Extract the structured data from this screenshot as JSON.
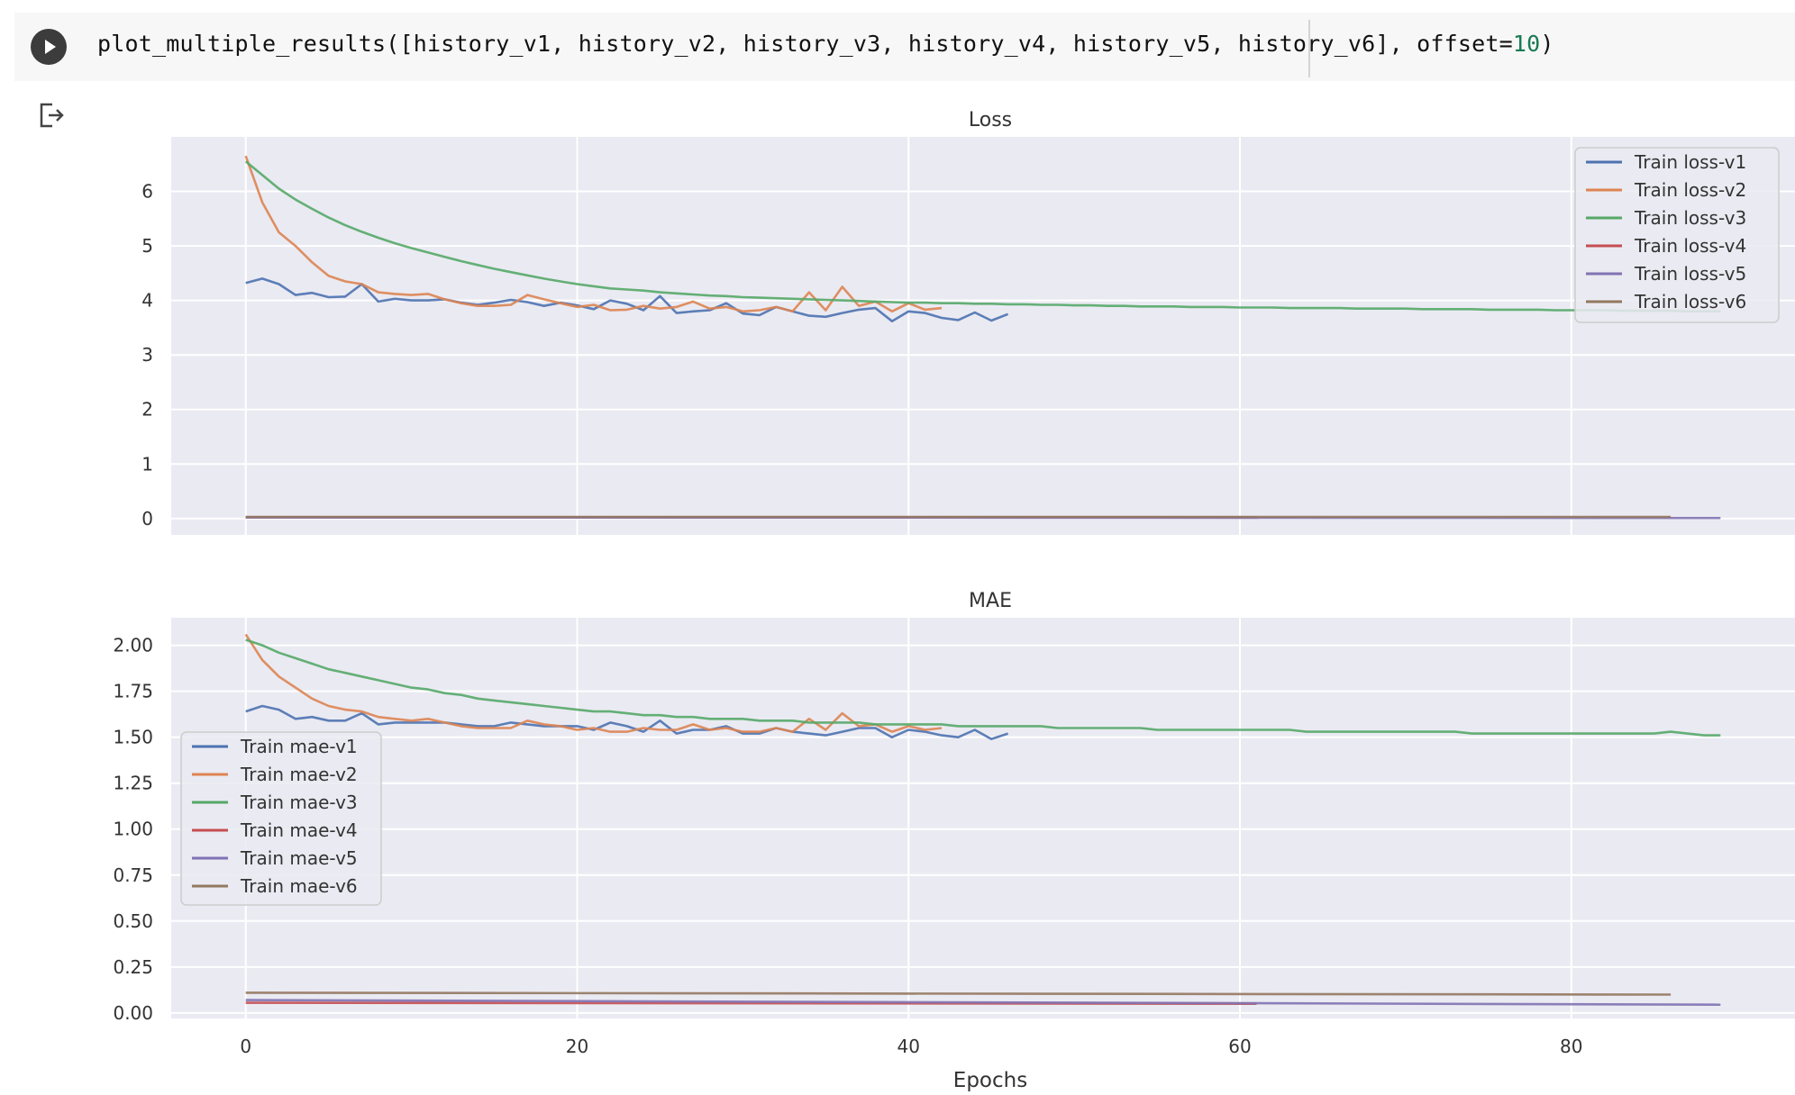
{
  "cell": {
    "code_prefix": "plot_multiple_results([history_v1, history_v2, history_v3, history_v4, history_v5, history_v6], offset=",
    "code_number": "10",
    "code_suffix": ")",
    "run_icon": "play-icon",
    "output_icon": "output-exit-icon"
  },
  "chart_data": [
    {
      "type": "line",
      "title": "Loss",
      "xlabel": "",
      "ylabel": "",
      "xlim": [
        -4.5,
        93.5
      ],
      "ylim": [
        -0.3,
        7.0
      ],
      "yticks": [
        0,
        1,
        2,
        3,
        4,
        5,
        6
      ],
      "xticks": [
        0,
        20,
        40,
        60,
        80
      ],
      "grid": true,
      "legend": "top-right",
      "series": [
        {
          "name": "Train loss-v1",
          "color": "#4c72b0",
          "x": [
            0,
            1,
            2,
            3,
            4,
            5,
            6,
            7,
            8,
            9,
            10,
            11,
            12,
            13,
            14,
            15,
            16,
            17,
            18,
            19,
            20,
            21,
            22,
            23,
            24,
            25,
            26,
            27,
            28,
            29,
            30,
            31,
            32,
            33,
            34,
            35,
            36,
            37,
            38,
            39,
            40,
            41,
            42,
            43,
            44,
            45,
            46
          ],
          "y": [
            4.32,
            4.4,
            4.3,
            4.1,
            4.14,
            4.06,
            4.07,
            4.3,
            3.98,
            4.03,
            4.0,
            4.0,
            4.02,
            3.96,
            3.92,
            3.96,
            4.01,
            3.97,
            3.9,
            3.96,
            3.91,
            3.84,
            4.0,
            3.94,
            3.82,
            4.08,
            3.77,
            3.8,
            3.82,
            3.95,
            3.76,
            3.73,
            3.88,
            3.8,
            3.72,
            3.7,
            3.77,
            3.83,
            3.86,
            3.62,
            3.8,
            3.77,
            3.68,
            3.64,
            3.78,
            3.63,
            3.75
          ]
        },
        {
          "name": "Train loss-v2",
          "color": "#dd8452",
          "x": [
            0,
            1,
            2,
            3,
            4,
            5,
            6,
            7,
            8,
            9,
            10,
            11,
            12,
            13,
            14,
            15,
            16,
            17,
            18,
            19,
            20,
            21,
            22,
            23,
            24,
            25,
            26,
            27,
            28,
            29,
            30,
            31,
            32,
            33,
            34,
            35,
            36,
            37,
            38,
            39,
            40,
            41,
            42
          ],
          "y": [
            6.65,
            5.8,
            5.25,
            5.0,
            4.7,
            4.45,
            4.35,
            4.3,
            4.15,
            4.12,
            4.1,
            4.12,
            4.02,
            3.95,
            3.9,
            3.9,
            3.92,
            4.1,
            4.02,
            3.95,
            3.88,
            3.92,
            3.82,
            3.83,
            3.9,
            3.85,
            3.88,
            3.98,
            3.85,
            3.88,
            3.8,
            3.82,
            3.88,
            3.8,
            4.15,
            3.82,
            4.25,
            3.9,
            3.98,
            3.8,
            3.95,
            3.83,
            3.86
          ]
        },
        {
          "name": "Train loss-v3",
          "color": "#55a868",
          "x": [
            0,
            1,
            2,
            3,
            4,
            5,
            6,
            7,
            8,
            9,
            10,
            11,
            12,
            13,
            14,
            15,
            16,
            17,
            18,
            19,
            20,
            21,
            22,
            23,
            24,
            25,
            26,
            27,
            28,
            29,
            30,
            31,
            32,
            33,
            34,
            35,
            36,
            37,
            38,
            39,
            40,
            41,
            42,
            43,
            44,
            45,
            46,
            47,
            48,
            49,
            50,
            51,
            52,
            53,
            54,
            55,
            56,
            57,
            58,
            59,
            60,
            61,
            62,
            63,
            64,
            65,
            66,
            67,
            68,
            69,
            70,
            71,
            72,
            73,
            74,
            75,
            76,
            77,
            78,
            79,
            80,
            81,
            82,
            83,
            84,
            85,
            86,
            87,
            88,
            89
          ],
          "y": [
            6.55,
            6.3,
            6.05,
            5.85,
            5.68,
            5.52,
            5.38,
            5.26,
            5.15,
            5.05,
            4.96,
            4.88,
            4.8,
            4.72,
            4.65,
            4.58,
            4.52,
            4.46,
            4.4,
            4.35,
            4.3,
            4.26,
            4.22,
            4.2,
            4.18,
            4.15,
            4.13,
            4.11,
            4.09,
            4.08,
            4.06,
            4.05,
            4.04,
            4.03,
            4.02,
            4.01,
            4.0,
            3.99,
            3.98,
            3.97,
            3.96,
            3.96,
            3.95,
            3.95,
            3.94,
            3.94,
            3.93,
            3.93,
            3.92,
            3.92,
            3.91,
            3.91,
            3.9,
            3.9,
            3.89,
            3.89,
            3.89,
            3.88,
            3.88,
            3.88,
            3.87,
            3.87,
            3.87,
            3.86,
            3.86,
            3.86,
            3.86,
            3.85,
            3.85,
            3.85,
            3.85,
            3.84,
            3.84,
            3.84,
            3.84,
            3.83,
            3.83,
            3.83,
            3.83,
            3.82,
            3.82,
            3.82,
            3.82,
            3.81,
            3.81,
            3.81,
            3.81,
            3.8,
            3.8,
            3.8
          ]
        },
        {
          "name": "Train loss-v4",
          "color": "#c44e52",
          "x": [
            0,
            61
          ],
          "y": [
            0.02,
            0.02
          ]
        },
        {
          "name": "Train loss-v5",
          "color": "#8172b3",
          "x": [
            0,
            89
          ],
          "y": [
            0.02,
            0.01
          ]
        },
        {
          "name": "Train loss-v6",
          "color": "#937860",
          "x": [
            0,
            86
          ],
          "y": [
            0.03,
            0.03
          ]
        }
      ]
    },
    {
      "type": "line",
      "title": "MAE",
      "xlabel": "Epochs",
      "ylabel": "",
      "xlim": [
        -4.5,
        93.5
      ],
      "ylim": [
        -0.03,
        2.15
      ],
      "yticks": [
        "0.00",
        "0.25",
        "0.50",
        "0.75",
        "1.00",
        "1.25",
        "1.50",
        "1.75",
        "2.00"
      ],
      "xticks": [
        0,
        20,
        40,
        60,
        80
      ],
      "grid": true,
      "legend": "center-left",
      "series": [
        {
          "name": "Train mae-v1",
          "color": "#4c72b0",
          "x": [
            0,
            1,
            2,
            3,
            4,
            5,
            6,
            7,
            8,
            9,
            10,
            11,
            12,
            13,
            14,
            15,
            16,
            17,
            18,
            19,
            20,
            21,
            22,
            23,
            24,
            25,
            26,
            27,
            28,
            29,
            30,
            31,
            32,
            33,
            34,
            35,
            36,
            37,
            38,
            39,
            40,
            41,
            42,
            43,
            44,
            45,
            46
          ],
          "y": [
            1.64,
            1.67,
            1.65,
            1.6,
            1.61,
            1.59,
            1.59,
            1.63,
            1.57,
            1.58,
            1.58,
            1.58,
            1.58,
            1.57,
            1.56,
            1.56,
            1.58,
            1.57,
            1.56,
            1.56,
            1.56,
            1.54,
            1.58,
            1.56,
            1.53,
            1.59,
            1.52,
            1.54,
            1.54,
            1.56,
            1.52,
            1.52,
            1.55,
            1.53,
            1.52,
            1.51,
            1.53,
            1.55,
            1.55,
            1.5,
            1.54,
            1.53,
            1.51,
            1.5,
            1.54,
            1.49,
            1.52
          ]
        },
        {
          "name": "Train mae-v2",
          "color": "#dd8452",
          "x": [
            0,
            1,
            2,
            3,
            4,
            5,
            6,
            7,
            8,
            9,
            10,
            11,
            12,
            13,
            14,
            15,
            16,
            17,
            18,
            19,
            20,
            21,
            22,
            23,
            24,
            25,
            26,
            27,
            28,
            29,
            30,
            31,
            32,
            33,
            34,
            35,
            36,
            37,
            38,
            39,
            40,
            41,
            42
          ],
          "y": [
            2.06,
            1.92,
            1.83,
            1.77,
            1.71,
            1.67,
            1.65,
            1.64,
            1.61,
            1.6,
            1.59,
            1.6,
            1.58,
            1.56,
            1.55,
            1.55,
            1.55,
            1.59,
            1.57,
            1.56,
            1.54,
            1.55,
            1.53,
            1.53,
            1.55,
            1.54,
            1.54,
            1.57,
            1.54,
            1.55,
            1.53,
            1.53,
            1.55,
            1.53,
            1.6,
            1.54,
            1.63,
            1.56,
            1.57,
            1.53,
            1.56,
            1.54,
            1.55
          ]
        },
        {
          "name": "Train mae-v3",
          "color": "#55a868",
          "x": [
            0,
            1,
            2,
            3,
            4,
            5,
            6,
            7,
            8,
            9,
            10,
            11,
            12,
            13,
            14,
            15,
            16,
            17,
            18,
            19,
            20,
            21,
            22,
            23,
            24,
            25,
            26,
            27,
            28,
            29,
            30,
            31,
            32,
            33,
            34,
            35,
            36,
            37,
            38,
            39,
            40,
            41,
            42,
            43,
            44,
            45,
            46,
            47,
            48,
            49,
            50,
            51,
            52,
            53,
            54,
            55,
            56,
            57,
            58,
            59,
            60,
            61,
            62,
            63,
            64,
            65,
            66,
            67,
            68,
            69,
            70,
            71,
            72,
            73,
            74,
            75,
            76,
            77,
            78,
            79,
            80,
            81,
            82,
            83,
            84,
            85,
            86,
            87,
            88,
            89
          ],
          "y": [
            2.03,
            2.0,
            1.96,
            1.93,
            1.9,
            1.87,
            1.85,
            1.83,
            1.81,
            1.79,
            1.77,
            1.76,
            1.74,
            1.73,
            1.71,
            1.7,
            1.69,
            1.68,
            1.67,
            1.66,
            1.65,
            1.64,
            1.64,
            1.63,
            1.62,
            1.62,
            1.61,
            1.61,
            1.6,
            1.6,
            1.6,
            1.59,
            1.59,
            1.59,
            1.58,
            1.58,
            1.58,
            1.58,
            1.57,
            1.57,
            1.57,
            1.57,
            1.57,
            1.56,
            1.56,
            1.56,
            1.56,
            1.56,
            1.56,
            1.55,
            1.55,
            1.55,
            1.55,
            1.55,
            1.55,
            1.54,
            1.54,
            1.54,
            1.54,
            1.54,
            1.54,
            1.54,
            1.54,
            1.54,
            1.53,
            1.53,
            1.53,
            1.53,
            1.53,
            1.53,
            1.53,
            1.53,
            1.53,
            1.53,
            1.52,
            1.52,
            1.52,
            1.52,
            1.52,
            1.52,
            1.52,
            1.52,
            1.52,
            1.52,
            1.52,
            1.52,
            1.53,
            1.52,
            1.51,
            1.51
          ]
        },
        {
          "name": "Train mae-v4",
          "color": "#c44e52",
          "x": [
            0,
            61
          ],
          "y": [
            0.055,
            0.05
          ]
        },
        {
          "name": "Train mae-v5",
          "color": "#8172b3",
          "x": [
            0,
            89
          ],
          "y": [
            0.07,
            0.045
          ]
        },
        {
          "name": "Train mae-v6",
          "color": "#937860",
          "x": [
            0,
            86
          ],
          "y": [
            0.11,
            0.1
          ]
        }
      ]
    }
  ]
}
